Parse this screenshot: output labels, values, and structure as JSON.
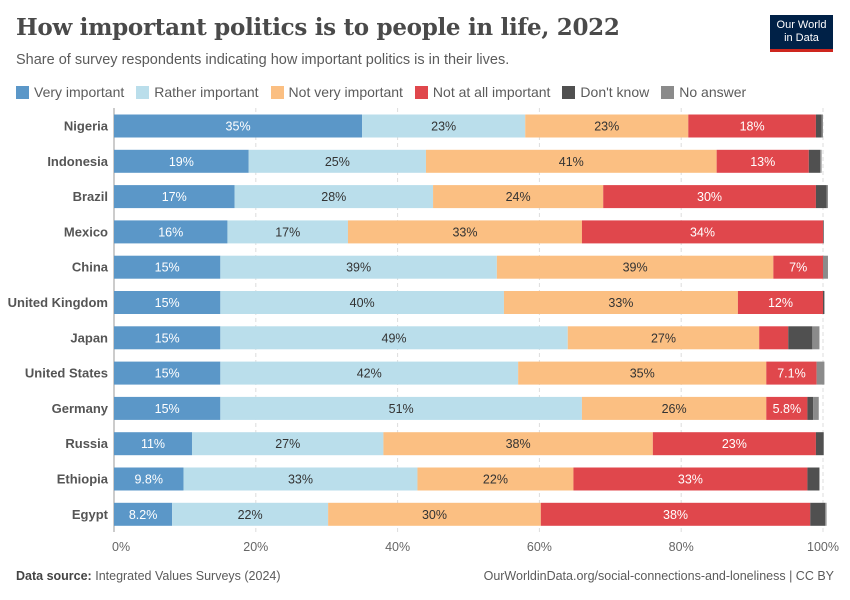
{
  "title": "How important politics is to people in life, 2022",
  "subtitle": "Share of survey respondents indicating how important politics is in their lives.",
  "logo": "Our World in Data",
  "footer": {
    "source_label": "Data source:",
    "source": "Integrated Values Surveys (2024)",
    "url": "OurWorldinData.org/social-connections-and-loneliness | CC BY"
  },
  "chart_data": {
    "type": "bar",
    "orientation": "horizontal",
    "stacked": true,
    "xlim": [
      0,
      100
    ],
    "x_ticks": [
      "0%",
      "20%",
      "40%",
      "60%",
      "80%",
      "100%"
    ],
    "grid": true,
    "legend_position": "top",
    "categories": [
      "Nigeria",
      "Indonesia",
      "Brazil",
      "Mexico",
      "China",
      "United Kingdom",
      "Japan",
      "United States",
      "Germany",
      "Russia",
      "Ethiopia",
      "Egypt"
    ],
    "series": [
      {
        "name": "Very important",
        "color": "#5b97c8",
        "text_color": "#ffffff",
        "values": [
          35,
          19,
          17,
          16,
          15,
          15,
          15,
          15,
          15,
          11,
          9.8,
          8.2
        ],
        "labels": [
          "35%",
          "19%",
          "17%",
          "16%",
          "15%",
          "15%",
          "15%",
          "15%",
          "15%",
          "11%",
          "9.8%",
          "8.2%"
        ]
      },
      {
        "name": "Rather important",
        "color": "#badeeb",
        "text_color": "#333333",
        "values": [
          23,
          25,
          28,
          17,
          39,
          40,
          49,
          42,
          51,
          27,
          33,
          22
        ],
        "labels": [
          "23%",
          "25%",
          "28%",
          "17%",
          "39%",
          "40%",
          "49%",
          "42%",
          "51%",
          "27%",
          "33%",
          "22%"
        ]
      },
      {
        "name": "Not very important",
        "color": "#fbbf82",
        "text_color": "#333333",
        "values": [
          23,
          41,
          24,
          33,
          39,
          33,
          27,
          35,
          26,
          38,
          22,
          30
        ],
        "labels": [
          "23%",
          "41%",
          "24%",
          "33%",
          "39%",
          "33%",
          "27%",
          "35%",
          "26%",
          "38%",
          "22%",
          "30%"
        ]
      },
      {
        "name": "Not at all important",
        "color": "#e0474c",
        "text_color": "#ffffff",
        "values": [
          18,
          13,
          30,
          34,
          7,
          12,
          4.1,
          7.1,
          5.8,
          23,
          33,
          38
        ],
        "labels": [
          "18%",
          "13%",
          "30%",
          "34%",
          "7%",
          "12%",
          "",
          "7.1%",
          "5.8%",
          "23%",
          "33%",
          "38%"
        ]
      },
      {
        "name": "Don't know",
        "color": "#505050",
        "text_color": "#ffffff",
        "values": [
          0.8,
          1.6,
          1.5,
          0.1,
          0,
          0.2,
          3.4,
          0,
          0.8,
          1.1,
          1.7,
          2.1
        ],
        "labels": [
          "",
          "",
          "",
          "",
          "",
          "",
          "",
          "",
          "",
          "",
          "",
          ""
        ]
      },
      {
        "name": "No answer",
        "color": "#8b8b8b",
        "text_color": "#ffffff",
        "values": [
          0.2,
          0.2,
          0.2,
          0,
          0.7,
          0,
          1.0,
          1.1,
          0.8,
          0,
          0,
          0.2
        ],
        "labels": [
          "",
          "",
          "",
          "",
          "",
          "",
          "",
          "",
          "",
          "",
          "",
          ""
        ]
      }
    ]
  }
}
